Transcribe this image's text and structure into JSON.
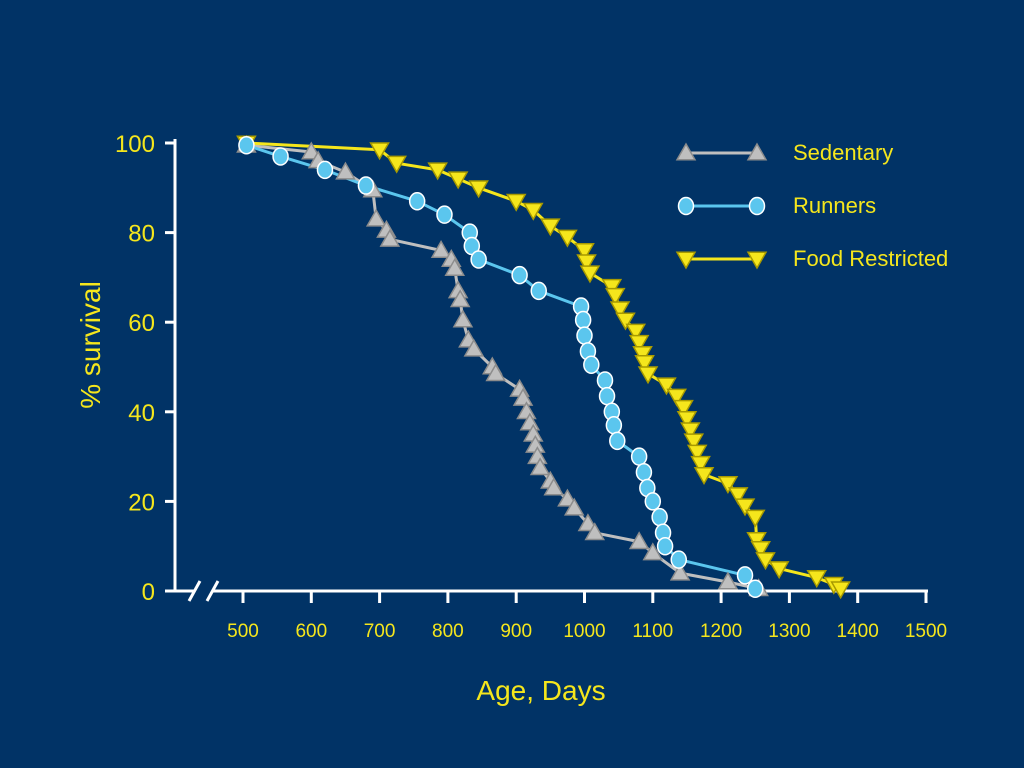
{
  "chart_data": {
    "type": "line",
    "xlabel": "Age, Days",
    "ylabel": "% survival",
    "xlim": [
      500,
      1500
    ],
    "ylim": [
      0,
      100
    ],
    "x_ticks": [
      "500",
      "600",
      "700",
      "800",
      "900",
      "1000",
      "1100",
      "1200",
      "1300",
      "1400",
      "1500"
    ],
    "y_ticks": [
      "0",
      "20",
      "40",
      "60",
      "80",
      "100"
    ],
    "axis_break": true,
    "grid": false,
    "legend_position": "top-right",
    "series": [
      {
        "name": "Sedentary",
        "marker": "triangle-up",
        "line_color": "#bfbfbf",
        "marker_fill": "#bfbfbf",
        "marker_stroke": "#8c8c8c",
        "points": [
          [
            505,
            99.5
          ],
          [
            600,
            98
          ],
          [
            610,
            96
          ],
          [
            650,
            93.5
          ],
          [
            690,
            89.5
          ],
          [
            695,
            83
          ],
          [
            710,
            80.5
          ],
          [
            715,
            78.5
          ],
          [
            790,
            76
          ],
          [
            805,
            74
          ],
          [
            810,
            72
          ],
          [
            815,
            67
          ],
          [
            818,
            65
          ],
          [
            822,
            60.5
          ],
          [
            830,
            56
          ],
          [
            838,
            54
          ],
          [
            865,
            50
          ],
          [
            870,
            48.5
          ],
          [
            905,
            45
          ],
          [
            910,
            43
          ],
          [
            915,
            40
          ],
          [
            920,
            37.5
          ],
          [
            925,
            35
          ],
          [
            928,
            32.5
          ],
          [
            931,
            30
          ],
          [
            935,
            27.5
          ],
          [
            950,
            24.5
          ],
          [
            955,
            23
          ],
          [
            975,
            20.5
          ],
          [
            985,
            18.5
          ],
          [
            1005,
            15
          ],
          [
            1015,
            13
          ],
          [
            1080,
            11
          ],
          [
            1100,
            8.5
          ],
          [
            1140,
            4
          ],
          [
            1210,
            2
          ],
          [
            1255,
            0.5
          ]
        ]
      },
      {
        "name": "Runners",
        "marker": "circle",
        "line_color": "#5bc6ee",
        "marker_fill": "#5bc6ee",
        "marker_stroke": "#ffffff",
        "points": [
          [
            505,
            99.5
          ],
          [
            555,
            97
          ],
          [
            620,
            94
          ],
          [
            680,
            90.5
          ],
          [
            755,
            87
          ],
          [
            795,
            84
          ],
          [
            832,
            80
          ],
          [
            835,
            77
          ],
          [
            845,
            74
          ],
          [
            905,
            70.5
          ],
          [
            933,
            67
          ],
          [
            995,
            63.5
          ],
          [
            998,
            60.5
          ],
          [
            1000,
            57
          ],
          [
            1005,
            53.5
          ],
          [
            1010,
            50.5
          ],
          [
            1030,
            47
          ],
          [
            1033,
            43.5
          ],
          [
            1040,
            40
          ],
          [
            1043,
            37
          ],
          [
            1048,
            33.5
          ],
          [
            1080,
            30
          ],
          [
            1087,
            26.5
          ],
          [
            1092,
            23
          ],
          [
            1100,
            20
          ],
          [
            1110,
            16.5
          ],
          [
            1115,
            13
          ],
          [
            1118,
            10
          ],
          [
            1138,
            7
          ],
          [
            1235,
            3.5
          ],
          [
            1250,
            0.5
          ]
        ]
      },
      {
        "name": "Food Restricted",
        "marker": "triangle-down",
        "line_color": "#f5e61c",
        "marker_fill": "#f5e61c",
        "marker_stroke": "#a89a00",
        "points": [
          [
            505,
            100
          ],
          [
            700,
            98.5
          ],
          [
            725,
            95.5
          ],
          [
            785,
            94
          ],
          [
            815,
            92
          ],
          [
            845,
            90
          ],
          [
            900,
            87
          ],
          [
            925,
            85
          ],
          [
            950,
            81.5
          ],
          [
            975,
            79
          ],
          [
            1000,
            76
          ],
          [
            1003,
            73.5
          ],
          [
            1008,
            71
          ],
          [
            1040,
            68
          ],
          [
            1045,
            66
          ],
          [
            1052,
            63
          ],
          [
            1060,
            60.5
          ],
          [
            1075,
            58
          ],
          [
            1080,
            55.5
          ],
          [
            1085,
            53
          ],
          [
            1088,
            51
          ],
          [
            1093,
            48.5
          ],
          [
            1120,
            46
          ],
          [
            1135,
            43.5
          ],
          [
            1145,
            41
          ],
          [
            1150,
            38.5
          ],
          [
            1155,
            36
          ],
          [
            1160,
            33.5
          ],
          [
            1165,
            31
          ],
          [
            1170,
            28.5
          ],
          [
            1175,
            26
          ],
          [
            1210,
            24
          ],
          [
            1225,
            21.5
          ],
          [
            1235,
            19
          ],
          [
            1250,
            16.5
          ],
          [
            1252,
            11.5
          ],
          [
            1258,
            9.5
          ],
          [
            1265,
            7
          ],
          [
            1285,
            5
          ],
          [
            1340,
            3
          ],
          [
            1365,
            1.5
          ],
          [
            1375,
            0.5
          ]
        ]
      }
    ]
  }
}
